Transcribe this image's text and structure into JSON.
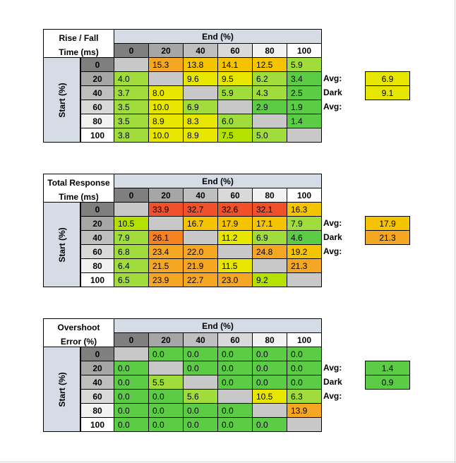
{
  "chart_data": [
    {
      "type": "table",
      "corner_label": [
        "Rise / Fall",
        "Time (ms)"
      ],
      "col_header": "End (%)",
      "row_header": "Start (%)",
      "columns": [
        "0",
        "20",
        "40",
        "60",
        "80",
        "100"
      ],
      "rows": [
        "0",
        "20",
        "40",
        "60",
        "80",
        "100"
      ],
      "values": [
        [
          null,
          15.3,
          13.8,
          14.1,
          12.5,
          5.9
        ],
        [
          4.0,
          null,
          9.6,
          9.5,
          6.2,
          3.4
        ],
        [
          3.7,
          8.0,
          null,
          5.9,
          4.3,
          2.5
        ],
        [
          3.5,
          10.0,
          6.9,
          null,
          2.9,
          1.9
        ],
        [
          3.5,
          8.9,
          8.3,
          6.0,
          null,
          1.4
        ],
        [
          3.8,
          10.0,
          8.9,
          7.5,
          5.0,
          null
        ]
      ],
      "colors": [
        [
          "#c8c8c8",
          "#f5a623",
          "#f5c400",
          "#f5c400",
          "#f5c400",
          "#9fdc3c"
        ],
        [
          "#9fdc3c",
          "#c8c8c8",
          "#e6e600",
          "#e6e600",
          "#9fdc3c",
          "#5ccc47"
        ],
        [
          "#9fdc3c",
          "#e6e600",
          "#c8c8c8",
          "#9fdc3c",
          "#9fdc3c",
          "#5ccc47"
        ],
        [
          "#9fdc3c",
          "#e6e600",
          "#9fdc3c",
          "#c8c8c8",
          "#5ccc47",
          "#5ccc47"
        ],
        [
          "#9fdc3c",
          "#e6e600",
          "#e6e600",
          "#9fdc3c",
          "#c8c8c8",
          "#5ccc47"
        ],
        [
          "#9fdc3c",
          "#e6e600",
          "#e6e600",
          "#b5e100",
          "#9fdc3c",
          "#c8c8c8"
        ]
      ],
      "avg_label": "Avg:",
      "avg_value": "6.9",
      "avg_color": "#e6e600",
      "dark_avg_label": "Dark Avg:",
      "dark_avg_value": "9.1",
      "dark_avg_color": "#e6e600"
    },
    {
      "type": "table",
      "corner_label": [
        "Total Response",
        "Time (ms)"
      ],
      "col_header": "End (%)",
      "row_header": "Start (%)",
      "columns": [
        "0",
        "20",
        "40",
        "60",
        "80",
        "100"
      ],
      "rows": [
        "0",
        "20",
        "40",
        "60",
        "80",
        "100"
      ],
      "values": [
        [
          null,
          33.9,
          32.7,
          32.6,
          32.1,
          16.3
        ],
        [
          10.5,
          null,
          16.7,
          17.9,
          17.1,
          7.9
        ],
        [
          7.9,
          26.1,
          null,
          11.2,
          6.9,
          4.6
        ],
        [
          6.8,
          23.4,
          22.0,
          null,
          24.8,
          19.2
        ],
        [
          6.4,
          21.5,
          21.9,
          11.5,
          null,
          21.3
        ],
        [
          6.5,
          23.9,
          22.7,
          23.0,
          9.2,
          null
        ]
      ],
      "colors": [
        [
          "#c8c8c8",
          "#f0502a",
          "#f0502a",
          "#f0502a",
          "#f0502a",
          "#f5c400"
        ],
        [
          "#b5e100",
          "#c8c8c8",
          "#f5c400",
          "#f5c400",
          "#f5c400",
          "#9fdc3c"
        ],
        [
          "#9fdc3c",
          "#f5821f",
          "#c8c8c8",
          "#e6e600",
          "#9fdc3c",
          "#5ccc47"
        ],
        [
          "#9fdc3c",
          "#f5a623",
          "#f5a623",
          "#c8c8c8",
          "#f5a623",
          "#f5c400"
        ],
        [
          "#9fdc3c",
          "#f5a623",
          "#f5a623",
          "#e6e600",
          "#c8c8c8",
          "#f5a623"
        ],
        [
          "#9fdc3c",
          "#f5a623",
          "#f5a623",
          "#f5a623",
          "#b5e100",
          "#c8c8c8"
        ]
      ],
      "avg_label": "Avg:",
      "avg_value": "17.9",
      "avg_color": "#f5c400",
      "dark_avg_label": "Dark Avg:",
      "dark_avg_value": "21.3",
      "dark_avg_color": "#f5a623"
    },
    {
      "type": "table",
      "corner_label": [
        "Overshoot",
        "Error (%)"
      ],
      "col_header": "End (%)",
      "row_header": "Start (%)",
      "columns": [
        "0",
        "20",
        "40",
        "60",
        "80",
        "100"
      ],
      "rows": [
        "0",
        "20",
        "40",
        "60",
        "80",
        "100"
      ],
      "values": [
        [
          null,
          0.0,
          0.0,
          0.0,
          0.0,
          0.0
        ],
        [
          0.0,
          null,
          0.0,
          0.0,
          0.0,
          0.0
        ],
        [
          0.0,
          5.5,
          null,
          0.0,
          0.0,
          0.0
        ],
        [
          0.0,
          0.0,
          5.6,
          null,
          10.5,
          6.3
        ],
        [
          0.0,
          0.0,
          0.0,
          0.0,
          null,
          13.9
        ],
        [
          0.0,
          0.0,
          0.0,
          0.0,
          0.0,
          null
        ]
      ],
      "colors": [
        [
          "#c8c8c8",
          "#5ccc47",
          "#5ccc47",
          "#5ccc47",
          "#5ccc47",
          "#5ccc47"
        ],
        [
          "#5ccc47",
          "#c8c8c8",
          "#5ccc47",
          "#5ccc47",
          "#5ccc47",
          "#5ccc47"
        ],
        [
          "#5ccc47",
          "#9fdc3c",
          "#c8c8c8",
          "#5ccc47",
          "#5ccc47",
          "#5ccc47"
        ],
        [
          "#5ccc47",
          "#5ccc47",
          "#9fdc3c",
          "#c8c8c8",
          "#e6e600",
          "#9fdc3c"
        ],
        [
          "#5ccc47",
          "#5ccc47",
          "#5ccc47",
          "#5ccc47",
          "#c8c8c8",
          "#f5a623"
        ],
        [
          "#5ccc47",
          "#5ccc47",
          "#5ccc47",
          "#5ccc47",
          "#5ccc47",
          "#c8c8c8"
        ]
      ],
      "avg_label": "Avg:",
      "avg_value": "1.4",
      "avg_color": "#5ccc47",
      "dark_avg_label": "Dark Avg:",
      "dark_avg_value": "0.9",
      "dark_avg_color": "#5ccc47"
    }
  ],
  "header_colors": {
    "end_header_bg": "#d6dce5",
    "start_header_bg": "#d6dce5",
    "col_shades": [
      "#7f7f7f",
      "#a6a6a6",
      "#bfbfbf",
      "#d9d9d9",
      "#f2f2f2",
      "#ffffff"
    ],
    "row_shades": [
      "#7f7f7f",
      "#a6a6a6",
      "#bfbfbf",
      "#d9d9d9",
      "#f2f2f2",
      "#ffffff"
    ]
  }
}
